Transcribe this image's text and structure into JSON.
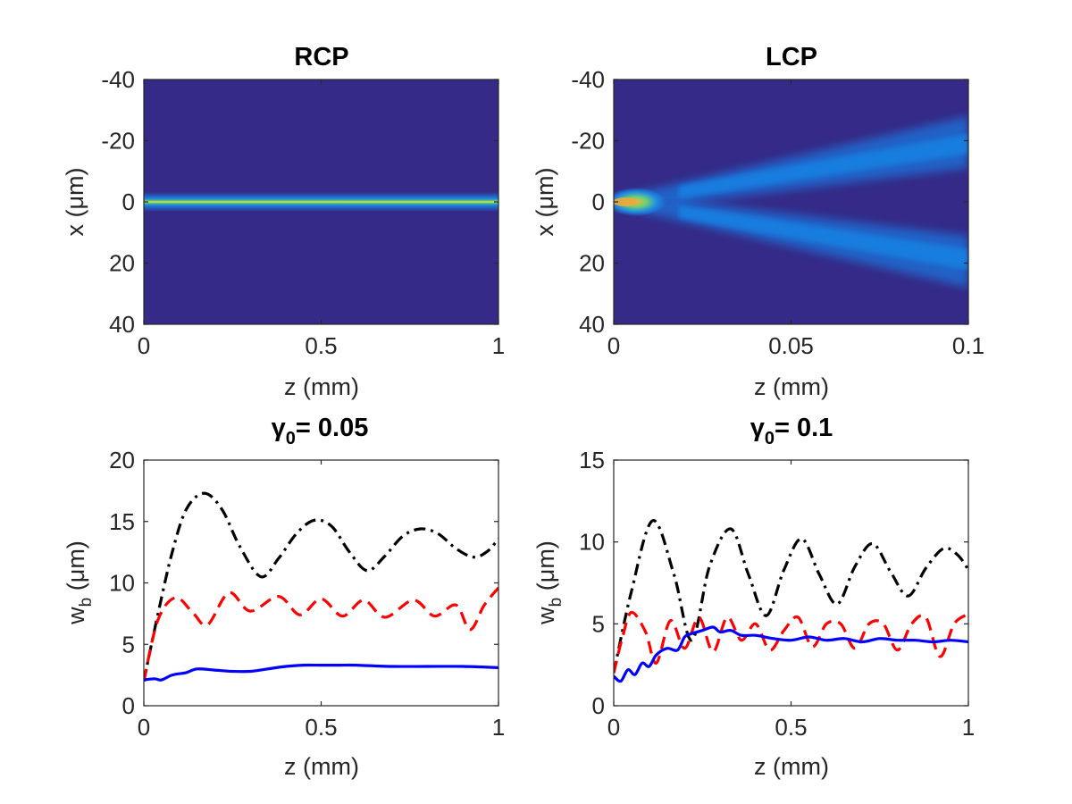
{
  "chart_data": [
    {
      "type": "heatmap",
      "title": "RCP",
      "xlabel": "z (mm)",
      "ylabel": "x (μm)",
      "xlim": [
        0,
        1
      ],
      "ylim": [
        -40,
        40
      ],
      "y_reversed": true,
      "xticks": [
        0,
        0.5,
        1
      ],
      "xtick_labels": [
        "0",
        "0.5",
        "1"
      ],
      "yticks": [
        -40,
        -20,
        0,
        20,
        40
      ],
      "ytick_labels": [
        "-40",
        "-20",
        "0",
        "20",
        "40"
      ],
      "colormap": "parula",
      "beams": [
        {
          "description": "non-diffracting beam",
          "center": [
            0,
            0
          ],
          "width_um": [
            1.8,
            1.8
          ],
          "amplitude": [
            1.0,
            1.0
          ]
        }
      ]
    },
    {
      "type": "heatmap",
      "title": "LCP",
      "xlabel": "z (mm)",
      "ylabel": "x (μm)",
      "xlim": [
        0,
        0.1
      ],
      "ylim": [
        -40,
        40
      ],
      "y_reversed": true,
      "xticks": [
        0,
        0.05,
        0.1
      ],
      "xtick_labels": [
        "0",
        "0.05",
        "0.1"
      ],
      "yticks": [
        -40,
        -20,
        0,
        20,
        40
      ],
      "ytick_labels": [
        "-40",
        "-20",
        "0",
        "20",
        "40"
      ],
      "colormap": "parula",
      "beams": [
        {
          "description": "upper branch",
          "center": [
            0,
            -18
          ],
          "width_um": [
            1.8,
            6
          ],
          "amplitude": [
            0.8,
            0.4
          ]
        },
        {
          "description": "lower branch",
          "center": [
            0,
            17
          ],
          "width_um": [
            1.8,
            6
          ],
          "amplitude": [
            0.8,
            0.4
          ]
        }
      ]
    },
    {
      "type": "line",
      "title": "γ0= 0.05",
      "title_base": "γ",
      "title_sub": "0",
      "title_rest": "= 0.05",
      "xlabel": "z (mm)",
      "ylabel_base": "w",
      "ylabel_sub": "b",
      "ylabel_rest": " (μm)",
      "xlim": [
        0,
        1
      ],
      "ylim": [
        0,
        20
      ],
      "xticks": [
        0,
        0.5,
        1
      ],
      "xtick_labels": [
        "0",
        "0.5",
        "1"
      ],
      "yticks": [
        0,
        5,
        10,
        15,
        20
      ],
      "ytick_labels": [
        "0",
        "5",
        "10",
        "15",
        "20"
      ],
      "series": [
        {
          "color": "#000000",
          "style": "dashdot",
          "x": [
            0,
            0.04,
            0.08,
            0.12,
            0.17,
            0.22,
            0.27,
            0.33,
            0.38,
            0.43,
            0.48,
            0.53,
            0.58,
            0.63,
            0.68,
            0.73,
            0.78,
            0.83,
            0.88,
            0.93,
            0.97,
            1.0
          ],
          "y": [
            2,
            7.5,
            12.5,
            16,
            17.3,
            16,
            13,
            10.5,
            12,
            14,
            15.1,
            14.6,
            12.5,
            11,
            12.2,
            13.8,
            14.4,
            14,
            12.8,
            12.1,
            12.6,
            13.6
          ]
        },
        {
          "color": "#ff0000",
          "style": "dashed",
          "x": [
            0,
            0.04,
            0.09,
            0.14,
            0.18,
            0.24,
            0.3,
            0.38,
            0.44,
            0.5,
            0.56,
            0.62,
            0.68,
            0.76,
            0.82,
            0.88,
            0.92,
            0.96,
            1.0
          ],
          "y": [
            2,
            7,
            8.8,
            7.5,
            6.6,
            9.2,
            7.7,
            8.9,
            7.4,
            8.7,
            7.3,
            8.6,
            7.2,
            8.6,
            7.3,
            8.2,
            6.2,
            8.2,
            9.6
          ]
        },
        {
          "color": "#0000ff",
          "style": "solid",
          "x": [
            0,
            0.03,
            0.05,
            0.08,
            0.12,
            0.15,
            0.2,
            0.25,
            0.3,
            0.35,
            0.4,
            0.45,
            0.5,
            0.55,
            0.6,
            0.7,
            0.8,
            0.9,
            1.0
          ],
          "y": [
            2.1,
            2.2,
            2.1,
            2.5,
            2.7,
            3.0,
            2.9,
            2.8,
            2.8,
            3.0,
            3.2,
            3.3,
            3.3,
            3.3,
            3.3,
            3.2,
            3.2,
            3.2,
            3.1
          ]
        }
      ]
    },
    {
      "type": "line",
      "title": "γ0= 0.1",
      "title_base": "γ",
      "title_sub": "0",
      "title_rest": "= 0.1",
      "xlabel": "z (mm)",
      "ylabel_base": "w",
      "ylabel_sub": "b",
      "ylabel_rest": " (μm)",
      "xlim": [
        0,
        1
      ],
      "ylim": [
        0,
        15
      ],
      "xticks": [
        0,
        0.5,
        1
      ],
      "xtick_labels": [
        "0",
        "0.5",
        "1"
      ],
      "yticks": [
        0,
        5,
        10,
        15
      ],
      "ytick_labels": [
        "0",
        "5",
        "10",
        "15"
      ],
      "series": [
        {
          "color": "#000000",
          "style": "dashdot",
          "x": [
            0,
            0.05,
            0.11,
            0.17,
            0.22,
            0.27,
            0.33,
            0.38,
            0.43,
            0.48,
            0.53,
            0.58,
            0.63,
            0.68,
            0.73,
            0.78,
            0.83,
            0.88,
            0.93,
            0.97,
            1.0
          ],
          "y": [
            2,
            7,
            11.3,
            8,
            4,
            8.5,
            10.8,
            8,
            5.5,
            8.3,
            10.2,
            8,
            6.2,
            8.5,
            9.9,
            8.2,
            6.7,
            8.4,
            9.6,
            9.2,
            8.3
          ]
        },
        {
          "color": "#ff0000",
          "style": "dashed",
          "x": [
            0,
            0.025,
            0.05,
            0.09,
            0.12,
            0.16,
            0.2,
            0.24,
            0.28,
            0.32,
            0.36,
            0.4,
            0.44,
            0.48,
            0.52,
            0.56,
            0.6,
            0.64,
            0.68,
            0.72,
            0.76,
            0.8,
            0.84,
            0.88,
            0.92,
            0.96,
            1.0
          ],
          "y": [
            2,
            4.2,
            5.7,
            4.5,
            2.6,
            5.2,
            3.5,
            5.4,
            3.3,
            5.4,
            4.0,
            5.0,
            3.4,
            4.6,
            5.4,
            3.6,
            5.0,
            5.0,
            3.5,
            5.0,
            5.0,
            3.4,
            5.0,
            5.4,
            3.0,
            5.0,
            5.6
          ]
        },
        {
          "color": "#0000ff",
          "style": "solid",
          "x": [
            0,
            0.02,
            0.04,
            0.06,
            0.08,
            0.1,
            0.12,
            0.15,
            0.18,
            0.2,
            0.22,
            0.25,
            0.28,
            0.3,
            0.33,
            0.36,
            0.4,
            0.45,
            0.5,
            0.55,
            0.6,
            0.65,
            0.7,
            0.75,
            0.8,
            0.85,
            0.9,
            0.95,
            1.0
          ],
          "y": [
            1.8,
            1.5,
            2.2,
            1.9,
            2.6,
            2.4,
            3.1,
            3.5,
            3.4,
            4.2,
            4.4,
            4.6,
            4.8,
            4.5,
            4.6,
            4.3,
            4.3,
            4.1,
            4.0,
            4.2,
            4.0,
            4.1,
            3.9,
            4.1,
            4.0,
            4.0,
            3.9,
            4.0,
            3.9
          ]
        }
      ]
    }
  ]
}
